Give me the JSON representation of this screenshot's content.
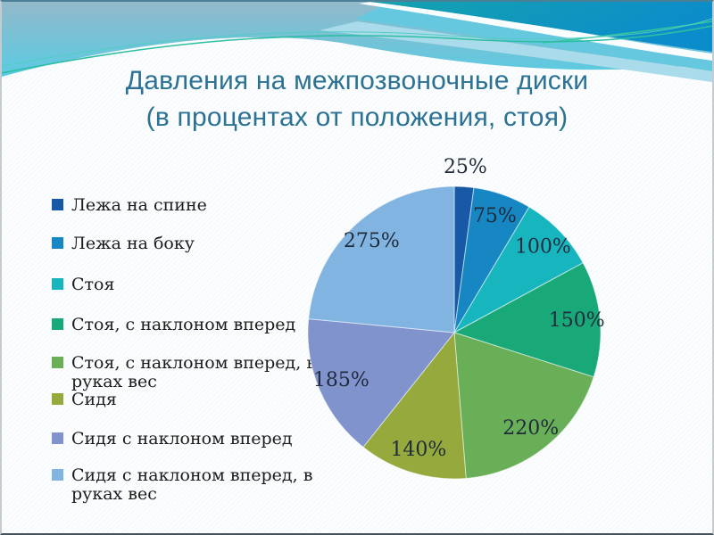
{
  "slide": {
    "title": {
      "line1": "Давления на межпозвоночные диски",
      "line2": "(в процентах от положения, стоя)"
    }
  },
  "chart_data": {
    "type": "pie",
    "title": "Давления на межпозвоночные диски (в процентах от положения, стоя)",
    "categories": [
      "Лежа на спине",
      "Лежа на боку",
      "Стоя",
      "Стоя, с наклоном вперед",
      "Стоя, с наклоном вперед, в руках вес",
      "Сидя",
      "Сидя с наклоном вперед",
      "Сидя с наклоном вперед, в руках вес"
    ],
    "values": [
      25,
      75,
      100,
      150,
      220,
      140,
      185,
      275
    ],
    "labels": [
      "25%",
      "75%",
      "100%",
      "150%",
      "220%",
      "140%",
      "185%",
      "275%"
    ],
    "colors": [
      "#1759A6",
      "#1787C4",
      "#17B6BE",
      "#19A878",
      "#69AF58",
      "#95A93C",
      "#8093CD",
      "#82B4E1"
    ],
    "label_color": "#1f2b3a",
    "legend_position": "left",
    "start_angle_deg": 0,
    "direction": "clockwise"
  },
  "theme": {
    "title_color": "#2b7294",
    "decoration": {
      "band_top": "#93b9cb",
      "band_bottom": "#59cbe2",
      "swoosh_teal": "#16a3ae",
      "swoosh_blue": "#0b8ccb",
      "mid_band": "#66c8de",
      "pale_band": "#a9dbea",
      "accent_line_green": "#2ebea2",
      "accent_line_teal": "#52cdc3"
    }
  }
}
